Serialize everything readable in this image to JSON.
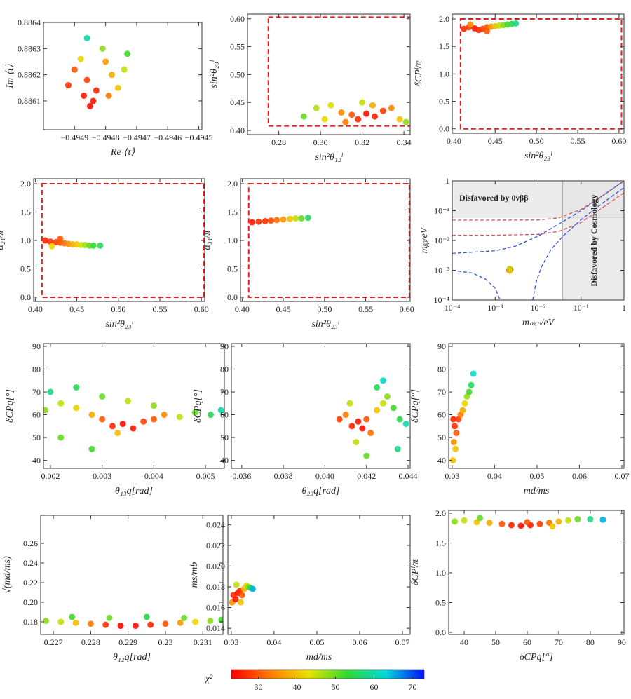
{
  "chart_data": [
    {
      "type": "scatter",
      "xlabel": "Re ⟨τ⟩",
      "ylabel": "Im ⟨τ⟩",
      "xlim": [
        -0.495,
        -0.49449
      ],
      "ylim": [
        0.88599,
        0.8864
      ],
      "xticks": [
        {
          "value": -0.4949,
          "label": "−0.4949"
        },
        {
          "value": -0.4948,
          "label": "−0.4948"
        },
        {
          "value": -0.4947,
          "label": "−0.4947"
        },
        {
          "value": -0.4946,
          "label": "−0.4946"
        },
        {
          "value": -0.4945,
          "label": "−0.4945"
        }
      ],
      "yticks": [
        0.8861,
        0.8862,
        0.8863,
        0.8864
      ],
      "x": [
        -0.49492,
        -0.4949,
        -0.49487,
        -0.49485,
        -0.49483,
        -0.49486,
        -0.49484,
        -0.4948,
        -0.49478,
        -0.49476,
        -0.49474,
        -0.49481,
        -0.49488,
        -0.49479,
        -0.49473,
        -0.49486
      ],
      "y": [
        0.88616,
        0.88622,
        0.88612,
        0.88608,
        0.88614,
        0.88618,
        0.8861,
        0.88625,
        0.8862,
        0.88615,
        0.88622,
        0.8863,
        0.88626,
        0.88612,
        0.88628,
        0.88634
      ],
      "chi2": [
        27,
        30,
        25,
        24,
        26,
        28,
        25,
        36,
        38,
        40,
        45,
        48,
        42,
        33,
        52,
        60
      ]
    },
    {
      "type": "scatter",
      "xlabel": "sin²θ₁₂ˡ",
      "ylabel": "sin²θ₂₃ˡ",
      "xlim": [
        0.265,
        0.343
      ],
      "ylim": [
        0.3925,
        0.6085
      ],
      "xticks": [
        0.28,
        {
          "value": 0.3,
          "label": "0.30"
        },
        0.32,
        0.34
      ],
      "yticks": [
        {
          "value": 0.4,
          "label": "0.40"
        },
        0.45,
        {
          "value": 0.5,
          "label": "0.50"
        },
        0.55,
        {
          "value": 0.6,
          "label": "0.60"
        }
      ],
      "region": [
        0.275,
        0.35,
        0.408,
        0.603
      ],
      "region_color": "#e02020",
      "x": [
        0.292,
        0.298,
        0.305,
        0.31,
        0.315,
        0.318,
        0.322,
        0.326,
        0.33,
        0.334,
        0.338,
        0.341,
        0.32,
        0.325,
        0.312,
        0.302
      ],
      "y": [
        0.425,
        0.44,
        0.445,
        0.432,
        0.428,
        0.42,
        0.43,
        0.425,
        0.435,
        0.44,
        0.42,
        0.415,
        0.45,
        0.445,
        0.415,
        0.42
      ],
      "chi2": [
        50,
        46,
        44,
        35,
        30,
        26,
        24,
        25,
        28,
        34,
        40,
        48,
        45,
        38,
        33,
        42
      ]
    },
    {
      "type": "scatter",
      "xlabel": "sin²θ₂₃ˡ",
      "ylabel": "δCPˡ/π",
      "xlim": [
        0.398,
        0.606
      ],
      "ylim": [
        -0.08,
        2.09
      ],
      "xticks": [
        {
          "value": 0.4,
          "label": "0.40"
        },
        0.45,
        {
          "value": 0.5,
          "label": "0.50"
        },
        0.55,
        {
          "value": 0.6,
          "label": "0.60"
        }
      ],
      "yticks": [
        {
          "value": 0,
          "label": "0.0"
        },
        0.5,
        {
          "value": 1,
          "label": "1.0"
        },
        1.5,
        {
          "value": 2,
          "label": "2.0"
        }
      ],
      "region": [
        0.408,
        0.603,
        0,
        2
      ],
      "region_color": "#e02020",
      "x": [
        0.412,
        0.418,
        0.425,
        0.43,
        0.435,
        0.44,
        0.445,
        0.45,
        0.455,
        0.46,
        0.465,
        0.47,
        0.475,
        0.42,
        0.44
      ],
      "y": [
        1.82,
        1.85,
        1.83,
        1.8,
        1.82,
        1.85,
        1.86,
        1.87,
        1.88,
        1.89,
        1.9,
        1.91,
        1.92,
        1.9,
        1.78
      ],
      "chi2": [
        26,
        27,
        25,
        26,
        28,
        30,
        35,
        40,
        45,
        48,
        52,
        55,
        58,
        35,
        30
      ]
    },
    {
      "type": "scatter",
      "xlabel": "sin²θ₂₃ˡ",
      "ylabel": "α₂₁/π",
      "xlim": [
        0.398,
        0.604
      ],
      "ylim": [
        -0.074,
        2.086
      ],
      "xticks": [
        {
          "value": 0.4,
          "label": "0.40"
        },
        0.45,
        {
          "value": 0.5,
          "label": "0.50"
        },
        0.55,
        {
          "value": 0.6,
          "label": "0.60"
        }
      ],
      "yticks": [
        {
          "value": 0,
          "label": "0.0"
        },
        0.5,
        {
          "value": 1,
          "label": "1.0"
        },
        1.5,
        {
          "value": 2,
          "label": "2.0"
        }
      ],
      "region": [
        0.408,
        0.603,
        0,
        2
      ],
      "region_color": "#e02020",
      "x": [
        0.412,
        0.418,
        0.425,
        0.43,
        0.435,
        0.44,
        0.445,
        0.45,
        0.455,
        0.46,
        0.465,
        0.47,
        0.478,
        0.42,
        0.43
      ],
      "y": [
        1.0,
        0.98,
        0.97,
        0.96,
        0.95,
        0.94,
        0.93,
        0.93,
        0.92,
        0.92,
        0.91,
        0.91,
        0.91,
        0.9,
        1.03
      ],
      "chi2": [
        26,
        27,
        28,
        30,
        32,
        35,
        38,
        40,
        44,
        47,
        50,
        53,
        55,
        42,
        30
      ]
    },
    {
      "type": "scatter",
      "xlabel": "sin²θ₂₃ˡ",
      "ylabel": "α₃₁/π",
      "xlim": [
        0.398,
        0.604
      ],
      "ylim": [
        -0.074,
        2.086
      ],
      "xticks": [
        {
          "value": 0.4,
          "label": "0.40"
        },
        0.45,
        {
          "value": 0.5,
          "label": "0.50"
        },
        0.55,
        {
          "value": 0.6,
          "label": "0.60"
        }
      ],
      "yticks": [
        {
          "value": 0,
          "label": "0.0"
        },
        0.5,
        {
          "value": 1,
          "label": "1.0"
        },
        1.5,
        {
          "value": 2,
          "label": "2.0"
        }
      ],
      "region": [
        0.408,
        0.603,
        0,
        2
      ],
      "region_color": "#e02020",
      "x": [
        0.412,
        0.42,
        0.428,
        0.435,
        0.442,
        0.45,
        0.458,
        0.465,
        0.472,
        0.48
      ],
      "y": [
        1.32,
        1.33,
        1.34,
        1.35,
        1.36,
        1.37,
        1.38,
        1.39,
        1.39,
        1.4
      ],
      "chi2": [
        25,
        26,
        27,
        29,
        32,
        36,
        40,
        45,
        50,
        56
      ]
    },
    {
      "type": "scatter",
      "xlabel": "mₘᵢₙ/eV",
      "ylabel": "mᵦᵦ/eV",
      "log": true,
      "xlim": [
        0.0001,
        1
      ],
      "ylim": [
        0.0001,
        1
      ],
      "xticks": [
        {
          "value": 0.0001,
          "label": "10⁻⁴"
        },
        {
          "value": 0.001,
          "label": "10⁻³"
        },
        {
          "value": 0.01,
          "label": "10⁻²"
        },
        {
          "value": 0.1,
          "label": "10⁻¹"
        },
        1
      ],
      "yticks": [
        {
          "value": 0.0001,
          "label": "10⁻⁴"
        },
        {
          "value": 0.001,
          "label": "10⁻³"
        },
        {
          "value": 0.01,
          "label": "10⁻²"
        },
        {
          "value": 0.1,
          "label": "10⁻¹"
        },
        1
      ],
      "limits": {
        "y": 0.061,
        "x": 0.037
      },
      "annotations": [
        "Disfavored by 0νββ",
        "Disfavored by Cosmology"
      ],
      "curves": [
        {
          "color": "#e05555",
          "x": [
            0.0001,
            0.001,
            0.01,
            0.03,
            0.1,
            0.3,
            1
          ],
          "y": [
            0.048,
            0.048,
            0.049,
            0.057,
            0.11,
            0.3,
            1.0
          ]
        },
        {
          "color": "#e05555",
          "x": [
            0.0001,
            0.001,
            0.01,
            0.03,
            0.1,
            0.3,
            1
          ],
          "y": [
            0.015,
            0.015,
            0.016,
            0.02,
            0.04,
            0.12,
            0.4
          ]
        },
        {
          "color": "#3355dd",
          "x": [
            0.0001,
            0.001,
            0.003,
            0.01,
            0.03,
            0.1,
            0.3,
            1
          ],
          "y": [
            0.0037,
            0.0045,
            0.0065,
            0.014,
            0.035,
            0.1,
            0.3,
            1.0
          ]
        },
        {
          "color": "#3355dd",
          "x": [
            0.0001,
            0.0003,
            0.0006,
            0.001,
            0.0013,
            null,
            0.0075,
            0.009,
            0.012,
            0.02,
            0.04,
            0.1,
            0.3,
            1
          ],
          "y": [
            0.001,
            0.0008,
            0.0005,
            0.00025,
            0.0001,
            null,
            0.0001,
            0.0004,
            0.0013,
            0.005,
            0.015,
            0.05,
            0.17,
            0.6
          ]
        }
      ],
      "x": [
        0.0021,
        0.0022,
        0.0023,
        0.0022,
        0.00215
      ],
      "y": [
        0.001,
        0.0011,
        0.00105,
        0.00095,
        0.00115
      ],
      "chi2": [
        30,
        25,
        28,
        40,
        45
      ]
    },
    {
      "type": "scatter",
      "xlabel": "θ₁₃q[rad]",
      "ylabel": "δCPq[°]",
      "xlim": [
        0.001865,
        0.005365
      ],
      "ylim": [
        36.5,
        91.2
      ],
      "xticks": [
        0.002,
        0.003,
        0.004,
        0.005
      ],
      "yticks": [
        40,
        50,
        60,
        70,
        80,
        90
      ],
      "x": [
        0.0019,
        0.0022,
        0.0025,
        0.0028,
        0.003,
        0.0032,
        0.0034,
        0.0036,
        0.0038,
        0.004,
        0.0042,
        0.0045,
        0.0048,
        0.0051,
        0.0053,
        0.002,
        0.0025,
        0.003,
        0.0035,
        0.004,
        0.0022,
        0.0028,
        0.0033
      ],
      "y": [
        62,
        65,
        63,
        60,
        58,
        55,
        56,
        54,
        57,
        58,
        60,
        59,
        61,
        60,
        62,
        70,
        72,
        68,
        66,
        64,
        50,
        45,
        52
      ],
      "chi2": [
        48,
        45,
        42,
        38,
        30,
        26,
        24,
        25,
        28,
        30,
        35,
        45,
        50,
        55,
        60,
        58,
        55,
        50,
        45,
        48,
        50,
        52,
        40
      ]
    },
    {
      "type": "scatter",
      "xlabel": "θ₂₃q[rad]",
      "ylabel": "δCPq[°]",
      "xlim": [
        0.0355,
        0.0441
      ],
      "ylim": [
        36.5,
        91.2
      ],
      "xticks": [
        0.036,
        0.038,
        {
          "value": 0.04,
          "label": "0.040"
        },
        0.042,
        0.044
      ],
      "yticks": [
        40,
        50,
        60,
        70,
        80,
        90
      ],
      "x": [
        0.0407,
        0.041,
        0.0413,
        0.0416,
        0.0418,
        0.042,
        0.0422,
        0.0425,
        0.0428,
        0.043,
        0.0433,
        0.0436,
        0.0439,
        0.0415,
        0.0425,
        0.0428,
        0.042,
        0.0412,
        0.0435
      ],
      "y": [
        58,
        60,
        55,
        57,
        54,
        58,
        52,
        62,
        65,
        68,
        63,
        58,
        56,
        48,
        72,
        75,
        42,
        65,
        45
      ],
      "chi2": [
        28,
        33,
        26,
        25,
        24,
        30,
        32,
        40,
        45,
        48,
        52,
        55,
        60,
        45,
        55,
        62,
        50,
        45,
        58
      ]
    },
    {
      "type": "scatter",
      "xlabel": "md/ms",
      "ylabel": "δCPq[°]",
      "xlim": [
        0.0292,
        0.0705
      ],
      "ylim": [
        36.5,
        91.2
      ],
      "xticks": [
        0.03,
        0.04,
        0.05,
        0.06,
        0.07
      ],
      "yticks": [
        40,
        50,
        60,
        70,
        80,
        90
      ],
      "x": [
        0.0302,
        0.0304,
        0.0306,
        0.031,
        0.0315,
        0.032,
        0.0325,
        0.033,
        0.0335,
        0.034,
        0.0345,
        0.035,
        0.0303,
        0.0308
      ],
      "y": [
        40,
        48,
        55,
        52,
        58,
        60,
        62,
        65,
        68,
        70,
        73,
        78,
        58,
        45
      ],
      "chi2": [
        40,
        35,
        27,
        30,
        28,
        33,
        38,
        42,
        47,
        52,
        56,
        62,
        26,
        40
      ]
    },
    {
      "type": "scatter",
      "xlabel": "θ₁₂q[rad]",
      "ylabel": "√(md/ms)",
      "xlim": [
        0.22666,
        0.23154
      ],
      "ylim": [
        0.1671,
        0.2886
      ],
      "xticks": [
        0.227,
        0.228,
        0.229,
        0.23,
        0.231
      ],
      "yticks": [
        0.18,
        {
          "value": 0.2,
          "label": "0.20"
        },
        0.22,
        0.24,
        0.26
      ],
      "x": [
        0.2268,
        0.2272,
        0.2276,
        0.228,
        0.2284,
        0.2288,
        0.2292,
        0.2296,
        0.23,
        0.2304,
        0.2308,
        0.2312,
        0.2315,
        0.2285,
        0.2295,
        0.2275,
        0.2305
      ],
      "y": [
        0.181,
        0.18,
        0.179,
        0.178,
        0.177,
        0.176,
        0.176,
        0.177,
        0.178,
        0.179,
        0.18,
        0.181,
        0.182,
        0.184,
        0.185,
        0.185,
        0.184
      ],
      "chi2": [
        48,
        45,
        40,
        33,
        27,
        24,
        24,
        26,
        30,
        36,
        42,
        48,
        52,
        50,
        55,
        52,
        50
      ]
    },
    {
      "type": "scatter",
      "xlabel": "md/ms",
      "ylabel": "ms/mb",
      "xlim": [
        0.0292,
        0.0718
      ],
      "ylim": [
        0.0134,
        0.0249
      ],
      "xticks": [
        0.03,
        0.04,
        0.05,
        0.06,
        0.07
      ],
      "yticks": [
        0.014,
        0.016,
        0.018,
        {
          "value": 0.02,
          "label": "0.020"
        },
        0.022,
        0.024
      ],
      "x": [
        0.0302,
        0.0305,
        0.031,
        0.0315,
        0.032,
        0.0325,
        0.033,
        0.0335,
        0.034,
        0.0345,
        0.035,
        0.0312,
        0.0322
      ],
      "y": [
        0.0165,
        0.0172,
        0.0168,
        0.0174,
        0.0176,
        0.0172,
        0.0178,
        0.0181,
        0.018,
        0.0179,
        0.0178,
        0.0182,
        0.0165
      ],
      "chi2": [
        35,
        27,
        25,
        24,
        26,
        30,
        38,
        42,
        48,
        55,
        65,
        45,
        40
      ]
    },
    {
      "type": "scatter",
      "xlabel": "δCPq[°]",
      "ylabel": "δCPˡ/π",
      "xlim": [
        35.1,
        90.7
      ],
      "ylim": [
        -0.035,
        2.047
      ],
      "xticks": [
        40,
        50,
        60,
        70,
        80,
        90
      ],
      "yticks": [
        {
          "value": 0,
          "label": "0.0"
        },
        0.5,
        {
          "value": 1,
          "label": "1.0"
        },
        1.5,
        {
          "value": 2,
          "label": "2.0"
        }
      ],
      "x": [
        37,
        40,
        44,
        48,
        52,
        55,
        58,
        61,
        64,
        67,
        70,
        73,
        76,
        80,
        84,
        45,
        60,
        68
      ],
      "y": [
        1.86,
        1.88,
        1.85,
        1.84,
        1.82,
        1.8,
        1.79,
        1.8,
        1.82,
        1.84,
        1.86,
        1.88,
        1.9,
        1.9,
        1.89,
        1.92,
        1.85,
        1.78
      ],
      "chi2": [
        48,
        45,
        40,
        38,
        30,
        26,
        24,
        25,
        28,
        32,
        38,
        45,
        50,
        58,
        65,
        50,
        30,
        40
      ]
    }
  ],
  "colorbar": {
    "label": "χ²",
    "lim": [
      23,
      73
    ],
    "ticks": [
      30,
      40,
      50,
      60,
      70
    ],
    "colors": [
      "#ff0000",
      "#ff7a00",
      "#e8e000",
      "#30d830",
      "#00d8d8",
      "#0010ff"
    ]
  }
}
